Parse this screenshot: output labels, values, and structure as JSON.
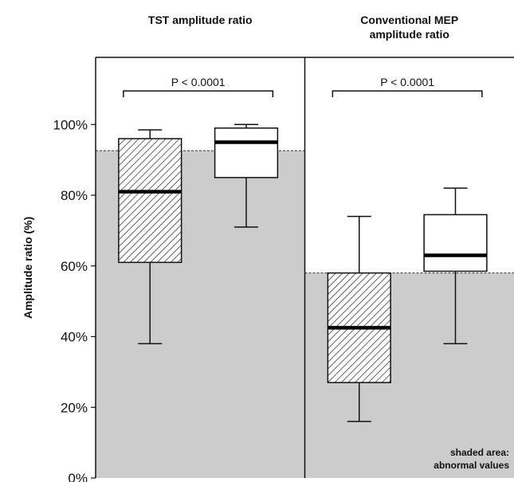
{
  "chart_data": {
    "type": "box",
    "ylabel": "Amplitude ratio (%)",
    "ylim": [
      0,
      119
    ],
    "yticks": [
      {
        "value": 0,
        "label": "0%"
      },
      {
        "value": 20,
        "label": "20%"
      },
      {
        "value": 40,
        "label": "40%"
      },
      {
        "value": 60,
        "label": "60%"
      },
      {
        "value": 80,
        "label": "80%"
      },
      {
        "value": 100,
        "label": "100%"
      }
    ],
    "shade_color": "#cccccc",
    "annotation": [
      "shaded area:",
      "abnormal values"
    ],
    "panels": [
      {
        "title": [
          "TST amplitude ratio"
        ],
        "threshold": 92.6,
        "bracket_y": 109.5,
        "p_label": "P < 0.0001",
        "boxes": [
          {
            "pattern": "hatched",
            "whisker_low": 38,
            "q1": 61,
            "median": 81,
            "q3": 96,
            "whisker_high": 98.5
          },
          {
            "pattern": "open",
            "whisker_low": 71,
            "q1": 85,
            "median": 95,
            "q3": 99,
            "whisker_high": 100
          }
        ]
      },
      {
        "title": [
          "Conventional MEP",
          "amplitude ratio"
        ],
        "threshold": 58,
        "bracket_y": 109.5,
        "p_label": "P < 0.0001",
        "boxes": [
          {
            "pattern": "hatched",
            "whisker_low": 16,
            "q1": 27,
            "median": 42.5,
            "q3": 58,
            "whisker_high": 74
          },
          {
            "pattern": "open",
            "whisker_low": 38,
            "q1": 58.5,
            "median": 63,
            "q3": 74.5,
            "whisker_high": 82
          }
        ]
      }
    ]
  }
}
